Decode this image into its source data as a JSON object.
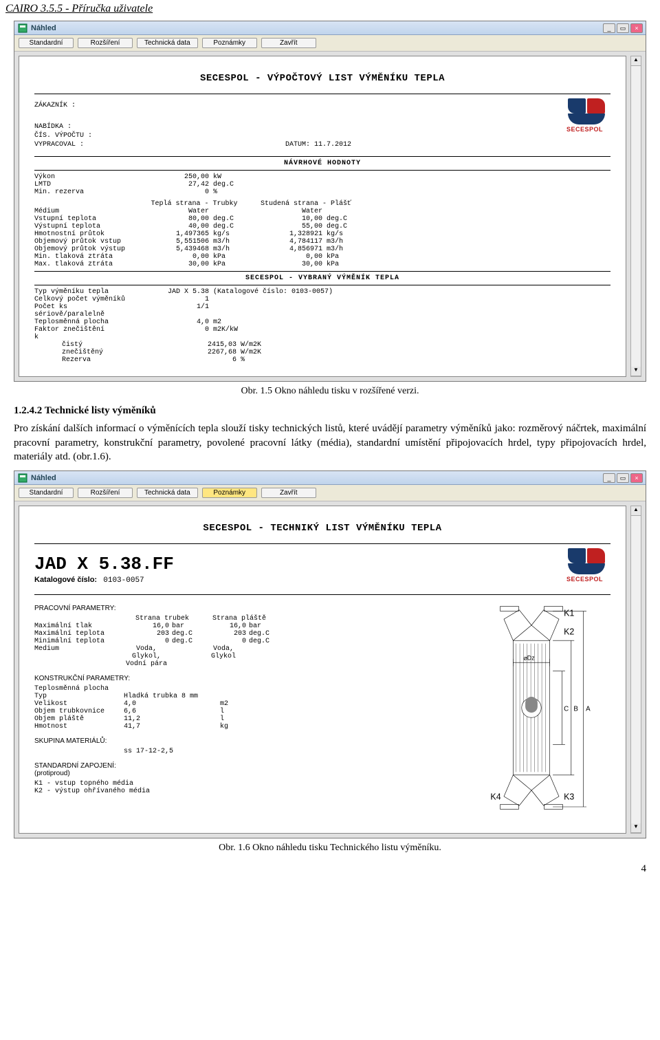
{
  "page_header": "CAIRO 3.5.5  - Příručka uživatele",
  "caption1": "Obr. 1.5 Okno náhledu tisku v rozšířené verzi.",
  "body": {
    "heading": "1.2.4.2 Technické listy výměníků",
    "text": "Pro získání dalších informací o výměnících tepla slouží tisky technických listů, které uvádějí parametry výměníků jako: rozměrový náčrtek, maximální pracovní parametry, konstrukční parametry, povolené pracovní látky (média), standardní umístění připojovacích hrdel, typy připojovacích hrdel, materiály atd. (obr.1.6)."
  },
  "caption2": "Obr. 1.6 Okno náhledu tisku Technického listu výměníku.",
  "page_number": "4",
  "win": {
    "title": "Náhled",
    "buttons": [
      "Standardní",
      "Rozšíření",
      "Technická data",
      "Poznámky",
      "Zavřít"
    ]
  },
  "logo_text": "SECESPOL",
  "doc1": {
    "title": "SECESPOL - VÝPOČTOVÝ LIST VÝMĚNÍKU TEPLA",
    "fields": {
      "customer_k": "ZÁKAZNÍK :",
      "offer_k": "NABÍDKA :",
      "calc_k": "ČÍS. VÝPOČTU :",
      "author_k": "VYPRACOVAL :",
      "date_k": "DATUM:",
      "date_v": "11.7.2012"
    },
    "s1_head": "NÁVRHOVÉ  HODNOTY",
    "rows1": [
      {
        "k": "Výkon",
        "v": "250,00",
        "u": "kW"
      },
      {
        "k": "LMTD",
        "v": "27,42",
        "u": "deg.C"
      },
      {
        "k": "Min. rezerva",
        "v": "0",
        "u": "%"
      }
    ],
    "side1": "Teplá strana - Trubky",
    "side2": "Studená strana - Plášť",
    "rows2": [
      {
        "k": "Médium",
        "v1": "Water",
        "u1": "",
        "v2": "Water",
        "u2": ""
      },
      {
        "k": "Vstupní teplota",
        "v1": "80,00",
        "u1": "deg.C",
        "v2": "10,00",
        "u2": "deg.C"
      },
      {
        "k": "Výstupní teplota",
        "v1": "40,00",
        "u1": "deg.C",
        "v2": "55,00",
        "u2": "deg.C"
      },
      {
        "k": "Hmotnostní průtok",
        "v1": "1,497365",
        "u1": "kg/s",
        "v2": "1,328921",
        "u2": "kg/s"
      },
      {
        "k": "Objemový průtok vstup",
        "v1": "5,551506",
        "u1": "m3/h",
        "v2": "4,784117",
        "u2": "m3/h"
      },
      {
        "k": "Objemový průtok výstup",
        "v1": "5,439468",
        "u1": "m3/h",
        "v2": "4,856971",
        "u2": "m3/h"
      },
      {
        "k": "Min. tlaková ztráta",
        "v1": "0,00",
        "u1": "kPa",
        "v2": "0,00",
        "u2": "kPa"
      },
      {
        "k": "Max. tlaková ztráta",
        "v1": "30,00",
        "u1": "kPa",
        "v2": "30,00",
        "u2": "kPa"
      }
    ],
    "s2_head": "SECESPOL - VYBRANÝ VÝMĚNÍK TEPLA",
    "rows3": [
      {
        "k": "Typ výměníku tepla",
        "v": "JAD X 5.38",
        "u": "(Katalogové číslo: 0103-0057)"
      },
      {
        "k": "Celkový počet výměníků",
        "v": "1",
        "u": ""
      },
      {
        "k": "Počet ks sériově/paralelně",
        "v": "1/1",
        "u": ""
      },
      {
        "k": "Teplosměnná plocha",
        "v": "4,0",
        "u": "m2"
      },
      {
        "k": "Faktor znečištění",
        "v": "0",
        "u": "m2K/kW"
      },
      {
        "k": "k",
        "v": "",
        "u": ""
      }
    ],
    "rows3b": [
      {
        "k": "čistý",
        "v": "2415,03",
        "u": "W/m2K"
      },
      {
        "k": "znečištěný",
        "v": "2267,68",
        "u": "W/m2K"
      },
      {
        "k": "Rezerva",
        "v": "6",
        "u": "%"
      }
    ]
  },
  "doc2": {
    "title": "SECESPOL - TECHNIKÝ LIST VÝMĚNÍKU TEPLA",
    "code": "JAD X 5.38.FF",
    "cat_k": "Katalogové číslo:",
    "cat_v": "0103-0057",
    "sec_prac": "PRACOVNÍ PARAMETRY:",
    "col1": "Strana trubek",
    "col2": "Strana pláště",
    "prac_rows": [
      {
        "k": "Maximální tlak",
        "v1": "16,0",
        "u1": "bar",
        "v2": "16,0",
        "u2": "bar"
      },
      {
        "k": "Maximální teplota",
        "v1": "203",
        "u1": "deg.C",
        "v2": "203",
        "u2": "deg.C"
      },
      {
        "k": "Minimální teplota",
        "v1": "0",
        "u1": "deg.C",
        "v2": "0",
        "u2": "deg.C"
      }
    ],
    "medium_k": "Medium",
    "medium_v1": "Voda,\nGlykol,\nVodní pára",
    "medium_v2": "Voda, Glykol",
    "sec_kon": "KONSTRUKČNÍ PARAMETRY:",
    "kon_rows": [
      {
        "k": "Teplosměnná plocha",
        "v": "",
        "u": ""
      },
      {
        "k": "Typ",
        "v": "Hladká trubka 8 mm",
        "u": ""
      },
      {
        "k": "Velikost",
        "v": "4,0",
        "u": "m2"
      },
      {
        "k": "Objem trubkovnice",
        "v": "6,6",
        "u": "l"
      },
      {
        "k": "Objem pláště",
        "v": "11,2",
        "u": "l"
      },
      {
        "k": "Hmotnost",
        "v": "41,7",
        "u": "kg"
      }
    ],
    "sec_mat": "SKUPINA MATERIÁLŮ:",
    "mat_v": "ss 17-12-2,5",
    "sec_zap": "STANDARDNÍ ZAPOJENÍ:\n(protiproud)",
    "zap1": "K1 - vstup topného média",
    "zap2": "K2 - výstup ohřívaného média",
    "diag_labels": {
      "k1": "K1",
      "k2": "K2",
      "k3": "K3",
      "k4": "K4",
      "dz": "⌀Dz",
      "a": "A",
      "b": "B",
      "c": "C"
    }
  }
}
